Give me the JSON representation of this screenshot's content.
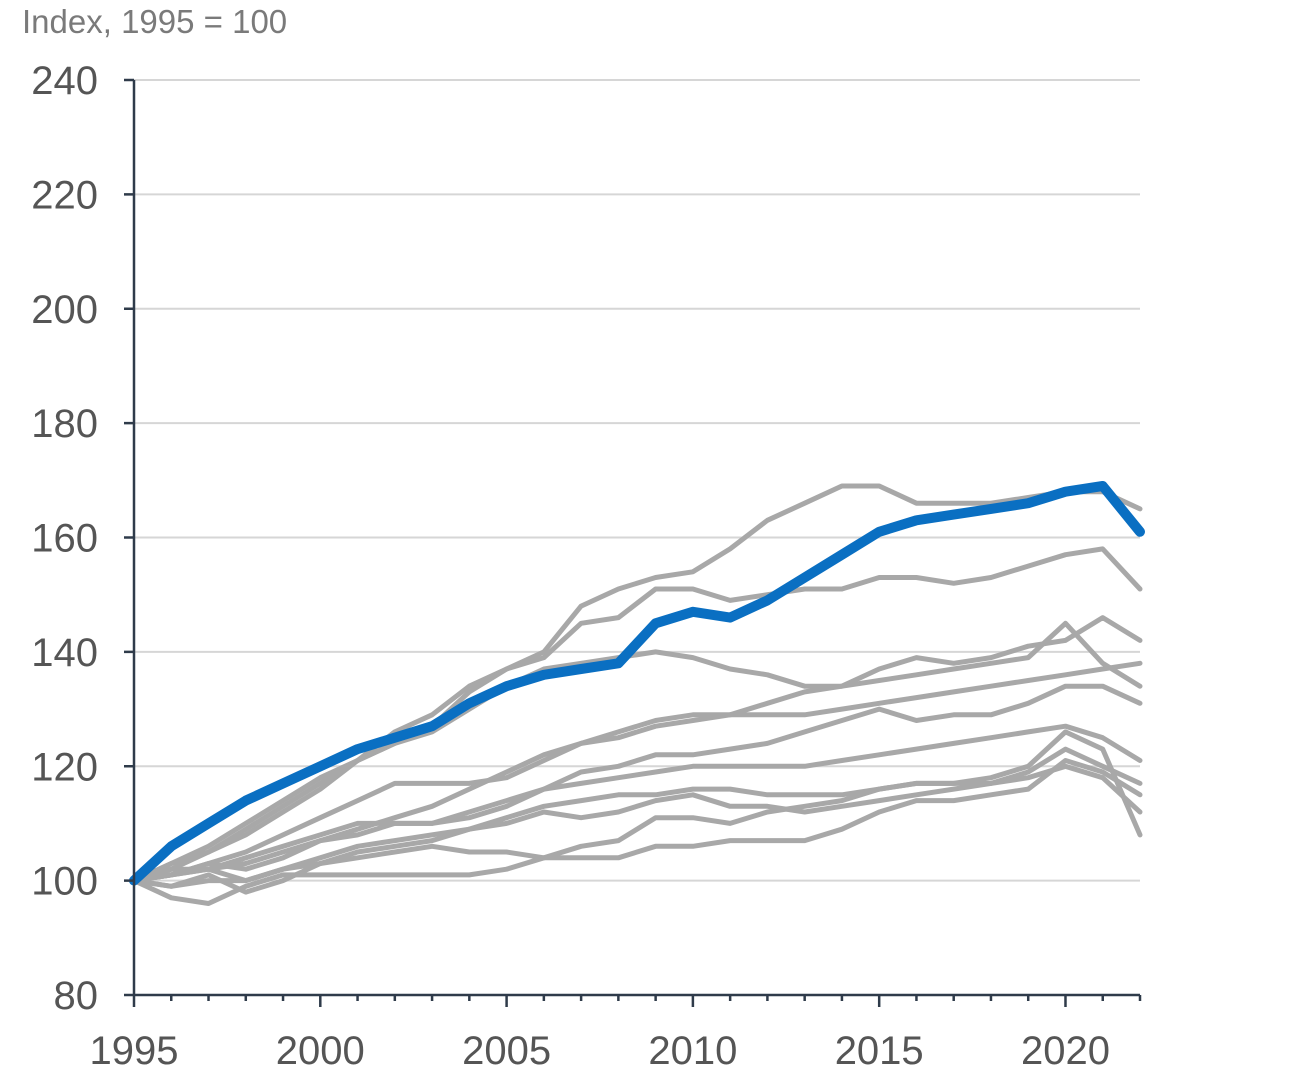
{
  "chart_data": {
    "type": "line",
    "unit_label": "Index, 1995 = 100",
    "title": "",
    "xlabel": "",
    "ylabel": "",
    "x": [
      1995,
      1996,
      1997,
      1998,
      1999,
      2000,
      2001,
      2002,
      2003,
      2004,
      2005,
      2006,
      2007,
      2008,
      2009,
      2010,
      2011,
      2012,
      2013,
      2014,
      2015,
      2016,
      2017,
      2018,
      2019,
      2020,
      2021,
      2022
    ],
    "xlim": [
      1995,
      2022
    ],
    "ylim": [
      80,
      240
    ],
    "x_ticks": [
      1995,
      2000,
      2005,
      2010,
      2015,
      2020
    ],
    "y_ticks": [
      80,
      100,
      120,
      140,
      160,
      180,
      200,
      220,
      240
    ],
    "grid": "horizontal",
    "legend": "none",
    "colors": {
      "highlight": "#0a6fc2",
      "other": "#a8a8a8"
    },
    "series": [
      {
        "highlight": false,
        "values": [
          100,
          102,
          105,
          108,
          112,
          116,
          121,
          126,
          129,
          134,
          137,
          140,
          148,
          151,
          153,
          154,
          158,
          163,
          166,
          169,
          169,
          166,
          166,
          166,
          167,
          168,
          168,
          165
        ]
      },
      {
        "highlight": false,
        "values": [
          100,
          103,
          106,
          110,
          114,
          118,
          121,
          124,
          127,
          133,
          137,
          139,
          145,
          146,
          151,
          151,
          149,
          150,
          151,
          151,
          153,
          153,
          152,
          153,
          155,
          157,
          158,
          151
        ]
      },
      {
        "highlight": false,
        "values": [
          100,
          103,
          105,
          109,
          113,
          117,
          121,
          124,
          126,
          130,
          134,
          137,
          138,
          139,
          140,
          139,
          137,
          136,
          134,
          134,
          137,
          139,
          138,
          139,
          141,
          142,
          146,
          142
        ]
      },
      {
        "highlight": false,
        "values": [
          100,
          101,
          103,
          105,
          108,
          111,
          114,
          117,
          117,
          117,
          118,
          121,
          124,
          125,
          127,
          128,
          129,
          131,
          133,
          134,
          135,
          136,
          137,
          138,
          139,
          145,
          138,
          134
        ]
      },
      {
        "highlight": false,
        "values": [
          100,
          101,
          102,
          103,
          105,
          107,
          109,
          111,
          113,
          116,
          119,
          122,
          124,
          126,
          128,
          129,
          129,
          129,
          129,
          130,
          131,
          132,
          133,
          134,
          135,
          136,
          137,
          138
        ]
      },
      {
        "highlight": false,
        "values": [
          100,
          102,
          102,
          104,
          106,
          108,
          110,
          110,
          110,
          111,
          113,
          116,
          119,
          120,
          122,
          122,
          123,
          124,
          126,
          128,
          130,
          128,
          129,
          129,
          131,
          134,
          134,
          131
        ]
      },
      {
        "highlight": false,
        "values": [
          100,
          101,
          103,
          102,
          104,
          107,
          108,
          110,
          110,
          112,
          114,
          116,
          117,
          118,
          119,
          120,
          120,
          120,
          120,
          121,
          122,
          123,
          124,
          125,
          126,
          127,
          125,
          121
        ]
      },
      {
        "highlight": false,
        "values": [
          100,
          99,
          101,
          98,
          100,
          103,
          105,
          106,
          107,
          109,
          110,
          112,
          111,
          112,
          114,
          115,
          113,
          113,
          112,
          113,
          114,
          115,
          116,
          117,
          119,
          123,
          120,
          117
        ]
      },
      {
        "highlight": false,
        "values": [
          100,
          101,
          102,
          100,
          102,
          104,
          106,
          107,
          108,
          109,
          111,
          113,
          114,
          115,
          115,
          116,
          116,
          115,
          115,
          115,
          116,
          117,
          117,
          117,
          118,
          120,
          118,
          112
        ]
      },
      {
        "highlight": false,
        "values": [
          100,
          97,
          96,
          99,
          101,
          101,
          101,
          101,
          101,
          101,
          102,
          104,
          106,
          107,
          111,
          111,
          110,
          112,
          113,
          114,
          116,
          117,
          117,
          118,
          120,
          126,
          123,
          108
        ]
      },
      {
        "highlight": false,
        "values": [
          100,
          99,
          100,
          100,
          102,
          103,
          104,
          105,
          106,
          105,
          105,
          104,
          104,
          104,
          106,
          106,
          107,
          107,
          107,
          109,
          112,
          114,
          114,
          115,
          116,
          121,
          119,
          115
        ]
      },
      {
        "highlight": true,
        "values": [
          100,
          106,
          110,
          114,
          117,
          120,
          123,
          125,
          127,
          131,
          134,
          136,
          137,
          138,
          145,
          147,
          146,
          149,
          153,
          157,
          161,
          163,
          164,
          165,
          166,
          168,
          169,
          161
        ]
      }
    ]
  }
}
